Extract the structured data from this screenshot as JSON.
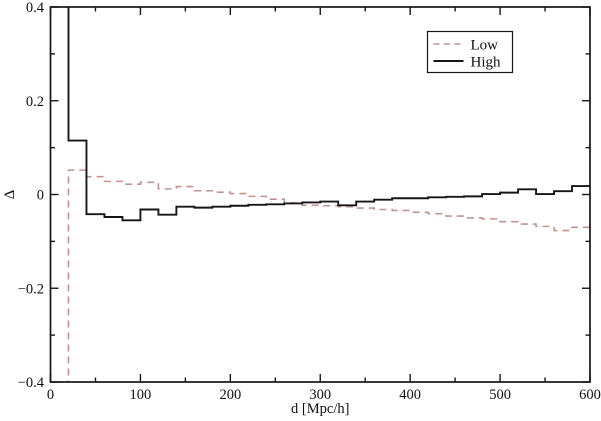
{
  "figure": {
    "type": "scientific-step-plot",
    "background": "#ffffff"
  },
  "chart_data": {
    "type": "line",
    "subtype": "step-histogram",
    "title": "",
    "xlabel": "d [Mpc/h]",
    "ylabel": "Δ",
    "xlim": [
      0,
      600
    ],
    "ylim": [
      -0.4,
      0.4
    ],
    "grid": false,
    "frame": true,
    "tick_direction": "in",
    "x_major_ticks": [
      0,
      100,
      200,
      300,
      400,
      500,
      600
    ],
    "x_tick_labels": [
      "0",
      "100",
      "200",
      "300",
      "400",
      "500",
      "600"
    ],
    "x_minor_ticks": [
      50,
      150,
      250,
      350,
      450,
      550
    ],
    "y_major_ticks": [
      0.4,
      0.2,
      0,
      -0.2,
      -0.4
    ],
    "y_tick_labels": [
      "0.4",
      "0.2",
      "0",
      "−0.2",
      "−0.4"
    ],
    "y_minor_ticks": [
      0.3,
      0.1,
      -0.1,
      -0.3
    ],
    "legend": {
      "position": "top-right",
      "entries": [
        "Low",
        "High"
      ]
    },
    "bin_edges": [
      0,
      20,
      40,
      60,
      80,
      100,
      120,
      140,
      160,
      180,
      200,
      220,
      240,
      260,
      280,
      300,
      320,
      340,
      360,
      380,
      400,
      420,
      440,
      460,
      480,
      500,
      520,
      540,
      560,
      580,
      600
    ],
    "series": [
      {
        "name": "Low",
        "style": "dashed",
        "color": "#c49290",
        "first_bin_clipped": "below ylim",
        "values": [
          -0.45,
          0.052,
          0.038,
          0.028,
          0.022,
          0.026,
          0.012,
          0.017,
          0.008,
          0.005,
          0.002,
          -0.004,
          -0.01,
          -0.018,
          -0.023,
          -0.024,
          -0.026,
          -0.029,
          -0.032,
          -0.034,
          -0.038,
          -0.041,
          -0.046,
          -0.05,
          -0.052,
          -0.058,
          -0.063,
          -0.068,
          -0.077,
          -0.07
        ]
      },
      {
        "name": "High",
        "style": "solid",
        "color": "#161616",
        "first_bin_clipped": "above ylim",
        "values": [
          0.45,
          0.115,
          -0.042,
          -0.048,
          -0.055,
          -0.032,
          -0.043,
          -0.026,
          -0.028,
          -0.026,
          -0.024,
          -0.022,
          -0.021,
          -0.019,
          -0.017,
          -0.015,
          -0.023,
          -0.015,
          -0.011,
          -0.008,
          -0.008,
          -0.006,
          -0.005,
          -0.004,
          0.001,
          0.004,
          0.011,
          0.001,
          0.007,
          0.018
        ]
      }
    ]
  }
}
